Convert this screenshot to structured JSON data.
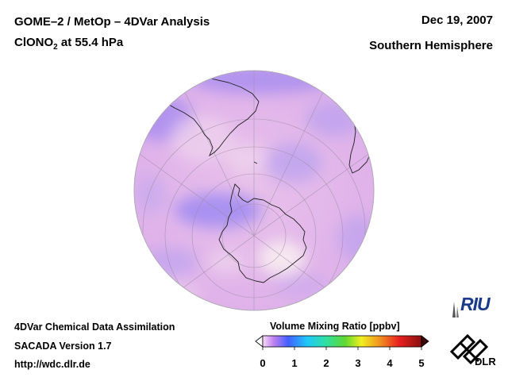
{
  "header": {
    "title_line1": "GOME–2 / MetOp – 4DVar Analysis",
    "species": "ClONO",
    "species_sub": "2",
    "species_level": " at 55.4 hPa",
    "date": "Dec 19, 2007",
    "region": "Southern Hemisphere"
  },
  "footer": {
    "line1": "4DVar Chemical Data Assimilation",
    "line2": "SACADA Version 1.7",
    "line3": "http://wdc.dlr.de"
  },
  "colorbar": {
    "title": "Volume Mixing Ratio [ppbv]",
    "ticks": [
      "0",
      "1",
      "2",
      "3",
      "4",
      "5"
    ],
    "range": [
      0,
      5
    ],
    "colors": [
      "#f4d6f4",
      "#b06cf0",
      "#3060ff",
      "#20d8f0",
      "#40d040",
      "#f0f020",
      "#f08020",
      "#e02020",
      "#a01010"
    ]
  },
  "map": {
    "projection": "orthographic south polar",
    "dominant_color": "#e8b8ec",
    "low_color": "#a48cf0",
    "high_color": "#f6e6ee"
  },
  "logos": {
    "riu": "RIU",
    "dlr": "DLR"
  }
}
